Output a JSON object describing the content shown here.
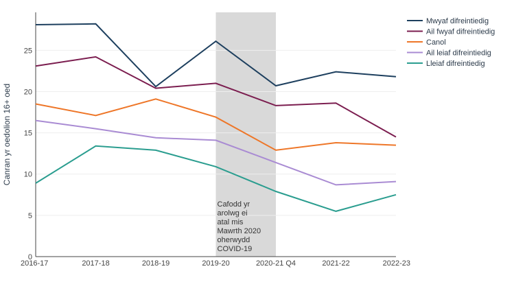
{
  "chart_data": {
    "type": "line",
    "title": "",
    "xlabel": "",
    "ylabel": "Canran yr oedolion 16+ oed",
    "categories": [
      "2016-17",
      "2017-18",
      "2018-19",
      "2019-20",
      "2020-21 Q4",
      "2021-22",
      "2022-23"
    ],
    "ylim": [
      0,
      30
    ],
    "yticks": [
      0,
      5,
      10,
      15,
      20,
      25
    ],
    "grid": true,
    "legend_position": "top-right",
    "series": [
      {
        "name": "Mwyaf difreintiedig",
        "color": "#1d3f5e",
        "values": [
          28.1,
          28.2,
          20.6,
          26.1,
          20.7,
          22.4,
          21.8
        ]
      },
      {
        "name": "Ail fwyaf difreintiedig",
        "color": "#7b1d4f",
        "values": [
          23.1,
          24.2,
          20.4,
          21.0,
          18.3,
          18.6,
          14.5
        ]
      },
      {
        "name": "Canol",
        "color": "#ee7628",
        "values": [
          18.5,
          17.1,
          19.1,
          16.9,
          12.9,
          13.8,
          13.5
        ]
      },
      {
        "name": "Ail leiaf difreintiedig",
        "color": "#a98bd3",
        "values": [
          16.5,
          15.5,
          14.4,
          14.1,
          11.4,
          8.7,
          9.1
        ]
      },
      {
        "name": "Lleiaf difreintiedig",
        "color": "#2a9d8f",
        "values": [
          8.9,
          13.4,
          12.9,
          10.9,
          7.9,
          5.5,
          7.5
        ]
      }
    ],
    "shaded_region": {
      "from": "2019-20",
      "to": "2020-21 Q4",
      "color": "#d9d9d9"
    },
    "annotation": {
      "category": "2019-20",
      "lines": [
        "Cafodd yr",
        "arolwg ei",
        "atal mis",
        "Mawrth 2020",
        "oherwydd",
        "COVID-19"
      ]
    }
  }
}
